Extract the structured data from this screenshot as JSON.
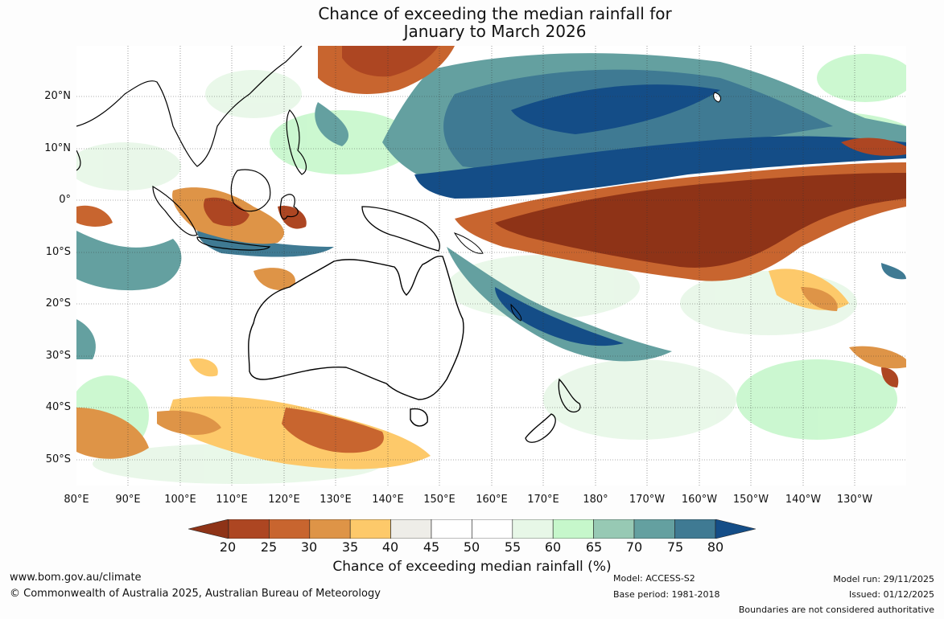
{
  "title": {
    "line1": "Chance of exceeding the median rainfall for",
    "line2": "January to March 2026"
  },
  "lat_labels": [
    "20°N",
    "10°N",
    "0°",
    "10°S",
    "20°S",
    "30°S",
    "40°S",
    "50°S"
  ],
  "lon_labels": [
    "80°E",
    "90°E",
    "100°E",
    "110°E",
    "120°E",
    "130°E",
    "140°E",
    "150°E",
    "160°E",
    "170°E",
    "180°",
    "170°W",
    "160°W",
    "150°W",
    "140°W",
    "130°W"
  ],
  "colorbar": {
    "ticks": [
      "20",
      "25",
      "30",
      "35",
      "40",
      "45",
      "50",
      "55",
      "60",
      "65",
      "70",
      "75",
      "80"
    ],
    "colors": [
      "#8e3317",
      "#ad4622",
      "#c8652f",
      "#de9447",
      "#fdc96a",
      "#eeede8",
      "#ffffff",
      "#ffffff",
      "#e7f7e7",
      "#c6f7cb",
      "#97c9b4",
      "#64a0a0",
      "#3f7a93",
      "#144d87"
    ],
    "label": "Chance of exceeding median rainfall (%)"
  },
  "footer": {
    "website": "www.bom.gov.au/climate",
    "copyright": "© Commonwealth of Australia 2025, Australian Bureau of Meteorology",
    "model": "Model: ACCESS-S2",
    "base_period": "Base period: 1981-2018",
    "model_run": "Model run: 29/11/2025",
    "issued": "Issued: 01/12/2025",
    "disclaimer": "Boundaries are not considered authoritative"
  }
}
